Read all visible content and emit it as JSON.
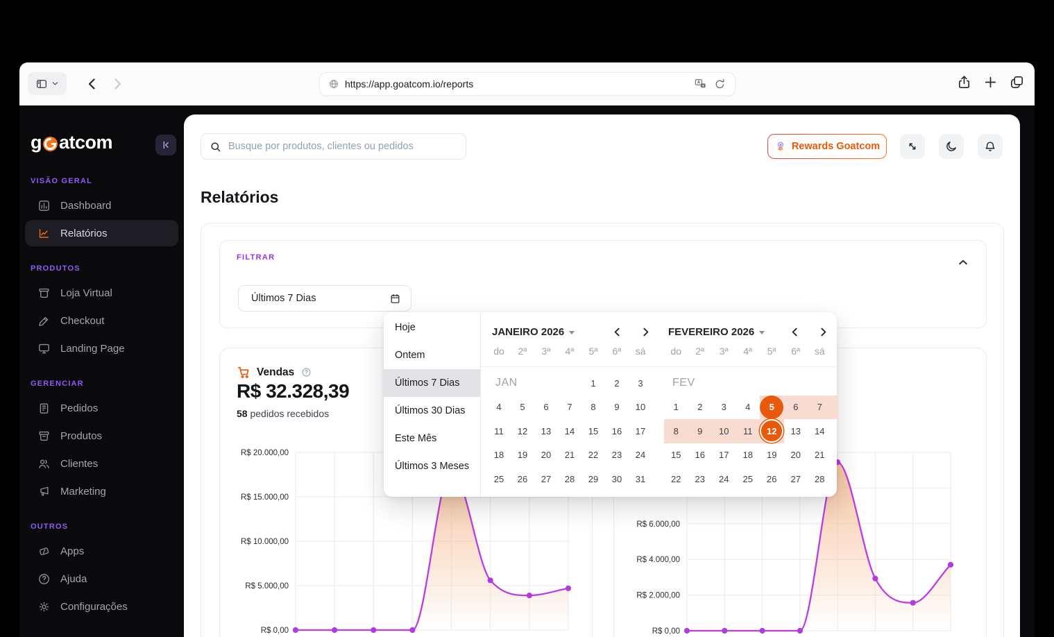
{
  "browser": {
    "url": "https://app.goatcom.io/reports"
  },
  "sidebar": {
    "logo_prefix": "g",
    "logo_suffix": "atcom",
    "sections": [
      {
        "label": "VISÃO GERAL",
        "items": [
          {
            "label": "Dashboard",
            "icon": "bar-chart",
            "active": false
          },
          {
            "label": "Relatórios",
            "icon": "line-chart",
            "active": true
          }
        ]
      },
      {
        "label": "PRODUTOS",
        "items": [
          {
            "label": "Loja Virtual",
            "icon": "storefront",
            "active": false
          },
          {
            "label": "Checkout",
            "icon": "pencil",
            "active": false
          },
          {
            "label": "Landing Page",
            "icon": "monitor",
            "active": false
          }
        ]
      },
      {
        "label": "GERENCIAR",
        "items": [
          {
            "label": "Pedidos",
            "icon": "clipboard",
            "active": false
          },
          {
            "label": "Produtos",
            "icon": "box",
            "active": false
          },
          {
            "label": "Clientes",
            "icon": "users",
            "active": false
          },
          {
            "label": "Marketing",
            "icon": "megaphone",
            "active": false
          }
        ]
      },
      {
        "label": "OUTROS",
        "items": [
          {
            "label": "Apps",
            "icon": "ticket",
            "active": false
          },
          {
            "label": "Ajuda",
            "icon": "help-circle",
            "active": false
          },
          {
            "label": "Configurações",
            "icon": "gear",
            "active": false
          }
        ]
      }
    ]
  },
  "header": {
    "search_placeholder": "Busque por produtos, clientes ou pedidos",
    "rewards_label": "Rewards Goatcom"
  },
  "page": {
    "title": "Relatórios"
  },
  "filter_card": {
    "label": "FILTRAR",
    "date_value": "Últimos 7 Dias"
  },
  "dropdown": {
    "options": [
      "Hoje",
      "Ontem",
      "Últimos 7 Dias",
      "Últimos 30 Dias",
      "Este Mês",
      "Últimos 3 Meses"
    ],
    "selected": "Últimos 7 Dias"
  },
  "calendar": {
    "months": [
      {
        "title": "JANEIRO 2026",
        "tag": "JAN",
        "weekdays": [
          "do",
          "2ª",
          "3ª",
          "4ª",
          "5ª",
          "6ª",
          "sá"
        ],
        "weeks": [
          [
            null,
            null,
            null,
            null,
            1,
            2,
            3
          ],
          [
            4,
            5,
            6,
            7,
            8,
            9,
            10
          ],
          [
            11,
            12,
            13,
            14,
            15,
            16,
            17
          ],
          [
            18,
            19,
            20,
            21,
            22,
            23,
            24
          ],
          [
            25,
            26,
            27,
            28,
            29,
            30,
            31
          ]
        ]
      },
      {
        "title": "FEVEREIRO 2026",
        "tag": "FEV",
        "weekdays": [
          "do",
          "2ª",
          "3ª",
          "4ª",
          "5ª",
          "6ª",
          "sá"
        ],
        "weeks": [
          [
            null,
            null,
            null,
            null,
            null,
            null,
            null
          ],
          [
            1,
            2,
            3,
            4,
            5,
            6,
            7
          ],
          [
            8,
            9,
            10,
            11,
            12,
            13,
            14
          ],
          [
            15,
            16,
            17,
            18,
            19,
            20,
            21
          ],
          [
            22,
            23,
            24,
            25,
            26,
            27,
            28
          ]
        ],
        "range": {
          "start": 5,
          "end": 12,
          "extend_after_day": 7
        }
      }
    ]
  },
  "sales_card": {
    "title": "Vendas",
    "value": "R$ 32.328,39",
    "orders_count": "58",
    "orders_label": " pedidos recebidos"
  },
  "chart_data": [
    {
      "type": "area",
      "title": "Vendas",
      "x": [
        1,
        2,
        3,
        4,
        5,
        6,
        7,
        8
      ],
      "values": [
        0,
        0,
        0,
        0,
        18100,
        5600,
        3900,
        4700
      ],
      "ylim": [
        0,
        20000
      ],
      "yticks": [
        0,
        5000,
        10000,
        15000,
        20000
      ],
      "ytick_labels": [
        "R$ 0,00",
        "R$ 5.000,00",
        "R$ 10.000,00",
        "R$ 15.000,00",
        "R$ 20.000,00"
      ],
      "grid": true,
      "line_color": "#bd3ce2",
      "dot_color": "#b23adf",
      "fill_top": "#f6c29c"
    },
    {
      "type": "area",
      "title": "",
      "x": [
        1,
        2,
        3,
        4,
        5,
        6,
        7,
        8
      ],
      "values": [
        0,
        0,
        0,
        0,
        9450,
        2930,
        1570,
        3700
      ],
      "ylim": [
        0,
        10000
      ],
      "yticks": [
        0,
        2000,
        4000,
        6000,
        8000,
        10000
      ],
      "ytick_labels": [
        "R$ 0,00",
        "R$ 2.000,00",
        "R$ 4.000,00",
        "R$ 6.000,00",
        "R$ 8.000,00",
        "R$ 10.000,00"
      ],
      "grid": true,
      "line_color": "#bd3ce2",
      "dot_color": "#b23adf",
      "fill_top": "#f6c29c"
    }
  ],
  "colors": {
    "accent_orange": "#e8590c",
    "accent_purple": "#8b5cf6",
    "filter_purple": "#9333ea",
    "line_purple": "#bd3ce2",
    "range_band": "#f8dcd2"
  }
}
